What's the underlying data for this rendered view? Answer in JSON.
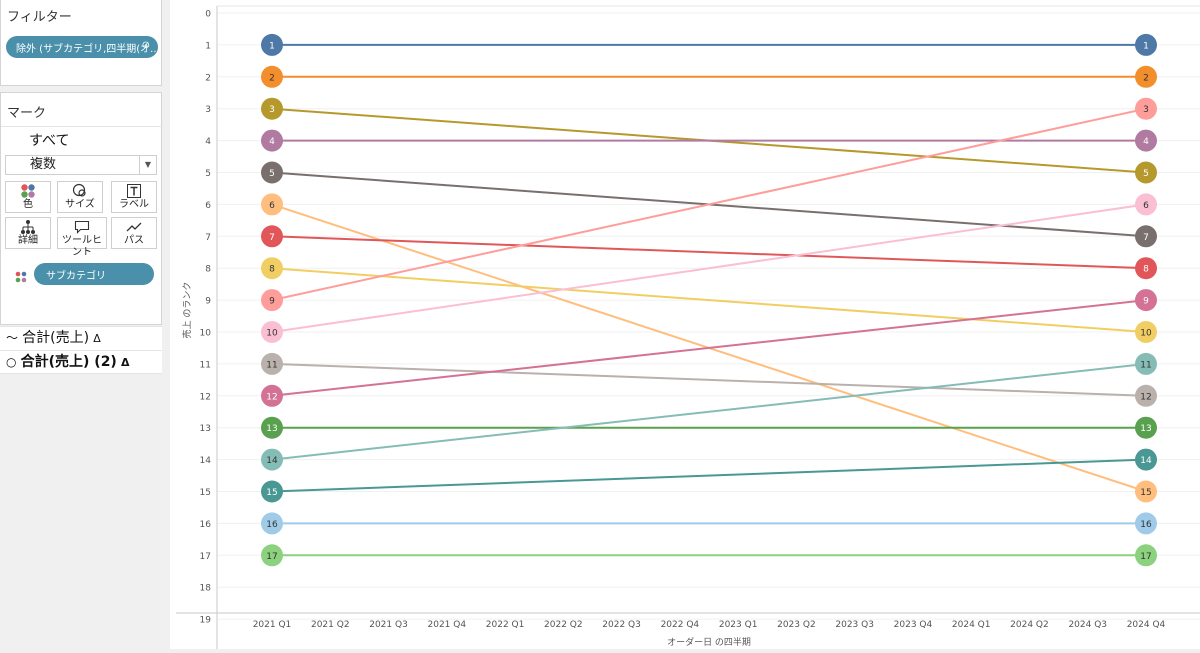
{
  "filters": {
    "title": "フィルター",
    "pill": "除外 (サブカテゴリ,四半期(オ...",
    "pill_icon": "link-icon"
  },
  "marks": {
    "title": "マーク",
    "all_label": "すべて",
    "type_value": "複数",
    "buttons": [
      {
        "label": "色",
        "icon": "color-dots-icon"
      },
      {
        "label": "サイズ",
        "icon": "size-circles-icon"
      },
      {
        "label": "ラベル",
        "icon": "text-t-icon"
      },
      {
        "label": "詳細",
        "icon": "detail-tree-icon"
      },
      {
        "label": "ツールヒント",
        "icon": "tooltip-bubble-icon"
      },
      {
        "label": "パス",
        "icon": "path-line-icon"
      }
    ],
    "color_field": "サブカテゴリ"
  },
  "measures": [
    {
      "label": "合計(売上)",
      "icon": "line-mark-icon",
      "delta": "Δ"
    },
    {
      "label": "合計(売上) (2)",
      "icon": "circle-mark-icon",
      "delta": "Δ"
    }
  ],
  "chart_data": {
    "type": "line",
    "title": "",
    "xlabel": "オーダー日 の四半期",
    "ylabel": "売上 のランク",
    "x": [
      "2021 Q1",
      "2021 Q2",
      "2021 Q3",
      "2021 Q4",
      "2022 Q1",
      "2022 Q2",
      "2022 Q3",
      "2022 Q4",
      "2023 Q1",
      "2023 Q2",
      "2023 Q3",
      "2023 Q4",
      "2024 Q1",
      "2024 Q2",
      "2024 Q3",
      "2024 Q4"
    ],
    "y_ticks": [
      "0",
      "1",
      "2",
      "3",
      "4",
      "5",
      "6",
      "7",
      "8",
      "9",
      "10",
      "11",
      "12",
      "13",
      "14",
      "15",
      "16",
      "17",
      "18",
      "19"
    ],
    "ylim": [
      0,
      19
    ],
    "y_reversed": true,
    "grid": true,
    "series": [
      {
        "start_rank": 1,
        "end_rank": 1,
        "color": "#4e79a7"
      },
      {
        "start_rank": 2,
        "end_rank": 2,
        "color": "#f28e2b"
      },
      {
        "start_rank": 3,
        "end_rank": 5,
        "color": "#b6992d"
      },
      {
        "start_rank": 4,
        "end_rank": 4,
        "color": "#b07aa1"
      },
      {
        "start_rank": 5,
        "end_rank": 7,
        "color": "#79706e"
      },
      {
        "start_rank": 6,
        "end_rank": 15,
        "color": "#ffbe7d"
      },
      {
        "start_rank": 7,
        "end_rank": 8,
        "color": "#e15759"
      },
      {
        "start_rank": 8,
        "end_rank": 10,
        "color": "#f1ce63"
      },
      {
        "start_rank": 9,
        "end_rank": 3,
        "color": "#ff9d9a"
      },
      {
        "start_rank": 10,
        "end_rank": 6,
        "color": "#fabfd2"
      },
      {
        "start_rank": 11,
        "end_rank": 12,
        "color": "#bab0ac"
      },
      {
        "start_rank": 12,
        "end_rank": 9,
        "color": "#d37295"
      },
      {
        "start_rank": 13,
        "end_rank": 13,
        "color": "#59a14f"
      },
      {
        "start_rank": 14,
        "end_rank": 11,
        "color": "#86bcb6"
      },
      {
        "start_rank": 15,
        "end_rank": 14,
        "color": "#499894"
      },
      {
        "start_rank": 16,
        "end_rank": 16,
        "color": "#a0cbe8"
      },
      {
        "start_rank": 17,
        "end_rank": 17,
        "color": "#8cd17d"
      }
    ]
  }
}
